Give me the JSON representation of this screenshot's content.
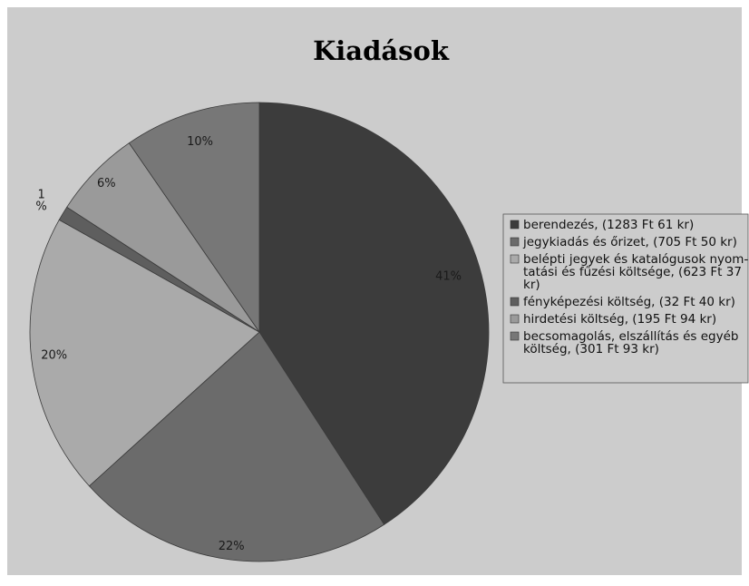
{
  "chart_data": {
    "type": "pie",
    "title": "Kiadások",
    "categories": [
      "berendezés, (1283 Ft 61 kr)",
      "jegykiadás és őrizet, (705 Ft 50 kr)",
      "belépti jegyek és katalógusok nyom-tatási és fűzési költsége, (623 Ft 37 kr)",
      "fényképezési költség, (32 Ft 40 kr)",
      "hirdetési költség, (195 Ft 94 kr)",
      "becsomagolás, elszállítás és egyéb költség, (301 Ft 93 kr)"
    ],
    "legend_lines": [
      [
        "berendezés, (1283 Ft 61 kr)"
      ],
      [
        "jegykiadás és őrizet, (705 Ft 50 kr)"
      ],
      [
        "belépti jegyek és katalógusok nyom-",
        "tatási és fűzési költsége, (623 Ft 37",
        "kr)"
      ],
      [
        "fényképezési költség, (32 Ft 40 kr)"
      ],
      [
        "hirdetési költség, (195 Ft 94 kr)"
      ],
      [
        "becsomagolás, elszállítás és egyéb",
        "költség, (301 Ft 93 kr)"
      ]
    ],
    "values": [
      1283.61,
      705.5,
      623.37,
      32.4,
      195.94,
      301.93
    ],
    "labels": [
      "41%",
      "22%",
      "20%",
      "1\n%",
      "6%",
      "10%"
    ],
    "colors": [
      "#3c3c3c",
      "#6b6b6b",
      "#aaaaaa",
      "#5e5e5e",
      "#9a9a9a",
      "#777777"
    ],
    "legend_position": "right",
    "background": "#cccccc"
  }
}
